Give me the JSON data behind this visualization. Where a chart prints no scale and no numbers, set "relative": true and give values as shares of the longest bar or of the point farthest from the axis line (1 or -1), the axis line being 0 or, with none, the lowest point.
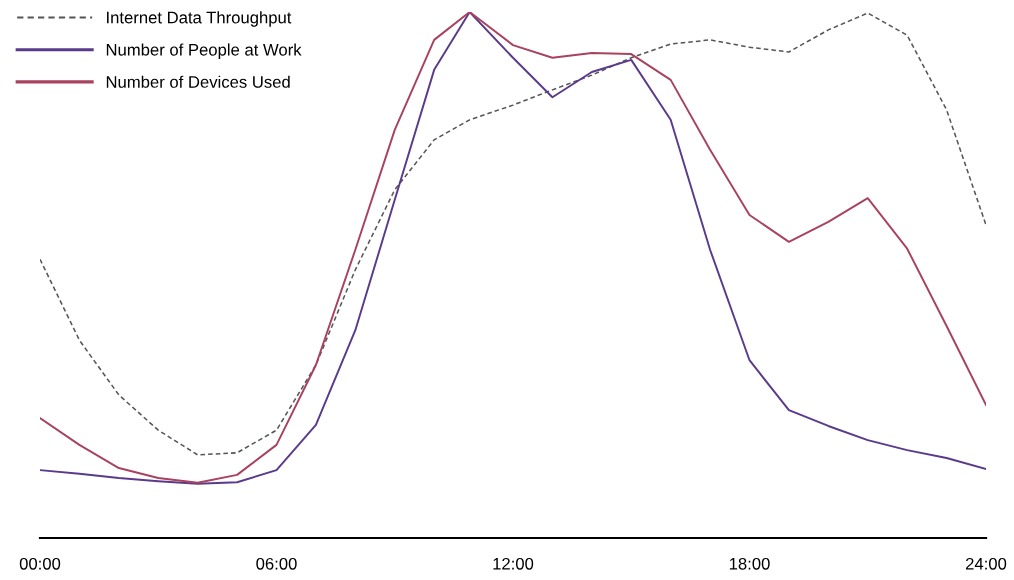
{
  "chart_data": {
    "type": "line",
    "relative": true,
    "x": [
      0,
      1,
      2,
      3,
      4,
      5,
      6,
      7,
      8,
      9,
      10,
      10.9,
      12,
      13,
      14,
      15,
      16,
      17,
      18,
      19,
      20,
      21,
      22,
      23,
      24
    ],
    "xlim": [
      0,
      24
    ],
    "xticks": [
      {
        "value": 0,
        "label": "00:00"
      },
      {
        "value": 6,
        "label": "06:00"
      },
      {
        "value": 12,
        "label": "12:00"
      },
      {
        "value": 18,
        "label": "18:00"
      },
      {
        "value": 24,
        "label": "24:00"
      }
    ],
    "series": [
      {
        "name": "Internet Data Throughput",
        "color": "#555555",
        "line_style": "dashed",
        "values": [
          0.53,
          0.376,
          0.272,
          0.205,
          0.158,
          0.162,
          0.205,
          0.329,
          0.51,
          0.662,
          0.757,
          0.795,
          0.823,
          0.852,
          0.88,
          0.913,
          0.939,
          0.947,
          0.933,
          0.924,
          0.966,
          0.998,
          0.956,
          0.814,
          0.595
        ]
      },
      {
        "name": "Number of People at Work",
        "color": "#5a3a8a",
        "line_style": "solid",
        "values": [
          0.129,
          0.122,
          0.114,
          0.108,
          0.103,
          0.106,
          0.129,
          0.215,
          0.395,
          0.643,
          0.89,
          1.0,
          0.913,
          0.838,
          0.886,
          0.909,
          0.795,
          0.548,
          0.338,
          0.243,
          0.213,
          0.186,
          0.167,
          0.152,
          0.131
        ]
      },
      {
        "name": "Number of Devices Used",
        "color": "#a8425e",
        "line_style": "solid",
        "values": [
          0.228,
          0.177,
          0.133,
          0.114,
          0.105,
          0.12,
          0.177,
          0.329,
          0.548,
          0.776,
          0.947,
          1.0,
          0.937,
          0.913,
          0.922,
          0.92,
          0.871,
          0.738,
          0.614,
          0.563,
          0.601,
          0.646,
          0.55,
          0.403,
          0.253
        ]
      }
    ],
    "legend": "top left",
    "marker": "none",
    "grid": false
  }
}
